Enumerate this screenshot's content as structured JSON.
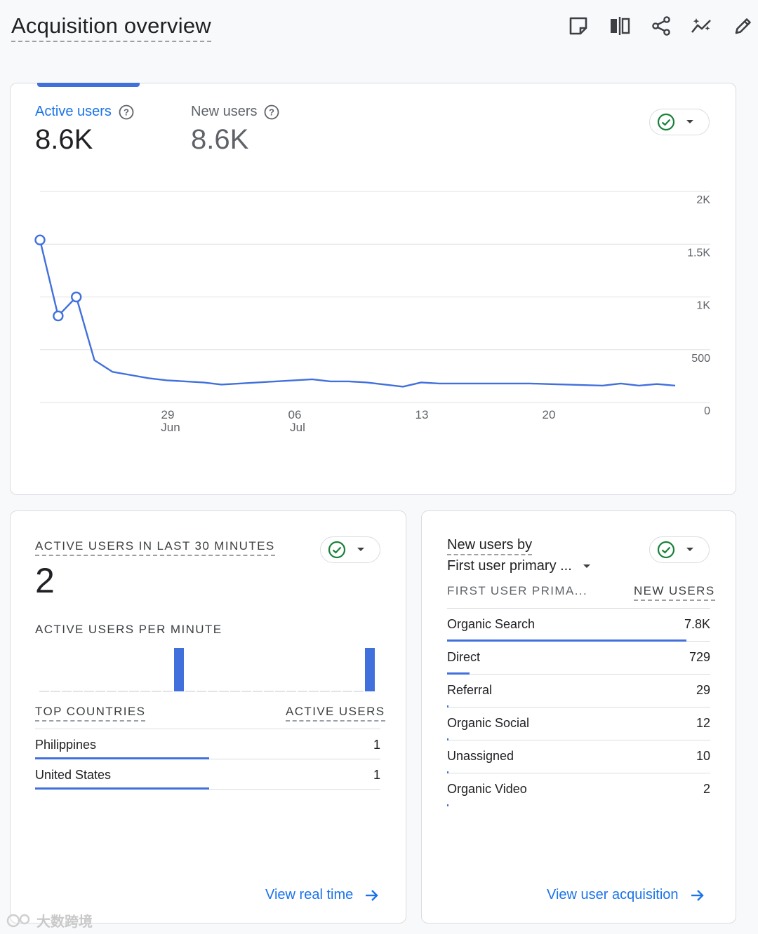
{
  "page": {
    "title": "Acquisition overview"
  },
  "toolbar": {
    "icons": [
      "notes-icon",
      "compare-icon",
      "share-icon",
      "insights-icon",
      "edit-icon"
    ]
  },
  "main_card": {
    "metrics": [
      {
        "label": "Active users",
        "value": "8.6K",
        "selected": true
      },
      {
        "label": "New users",
        "value": "8.6K",
        "selected": false
      }
    ]
  },
  "chart_data": {
    "type": "line",
    "title": "",
    "xlabel": "",
    "ylabel": "",
    "ylim": [
      0,
      2000
    ],
    "y_ticks": [
      "2K",
      "1.5K",
      "1K",
      "500",
      "0"
    ],
    "x_tick_labels": [
      {
        "day": "29",
        "month": "Jun"
      },
      {
        "day": "06",
        "month": "Jul"
      },
      {
        "day": "13",
        "month": ""
      },
      {
        "day": "20",
        "month": ""
      }
    ],
    "x": [
      "2023-06-22",
      "2023-06-23",
      "2023-06-24",
      "2023-06-25",
      "2023-06-26",
      "2023-06-27",
      "2023-06-28",
      "2023-06-29",
      "2023-06-30",
      "2023-07-01",
      "2023-07-02",
      "2023-07-03",
      "2023-07-04",
      "2023-07-05",
      "2023-07-06",
      "2023-07-07",
      "2023-07-08",
      "2023-07-09",
      "2023-07-10",
      "2023-07-11",
      "2023-07-12",
      "2023-07-13",
      "2023-07-14",
      "2023-07-15",
      "2023-07-16",
      "2023-07-17",
      "2023-07-18",
      "2023-07-19",
      "2023-07-20",
      "2023-07-21",
      "2023-07-22",
      "2023-07-23",
      "2023-07-24",
      "2023-07-25",
      "2023-07-26",
      "2023-07-27"
    ],
    "series": [
      {
        "values": [
          1540,
          820,
          1000,
          400,
          290,
          260,
          230,
          210,
          200,
          190,
          170,
          180,
          190,
          200,
          210,
          220,
          200,
          200,
          190,
          170,
          150,
          190,
          180,
          180,
          180,
          180,
          180,
          180,
          175,
          170,
          165,
          160,
          180,
          160,
          175,
          160
        ],
        "markers_visible": [
          true,
          true,
          true,
          false,
          false,
          false,
          false,
          false,
          false,
          false,
          false,
          false,
          false,
          false,
          false,
          false,
          false,
          false,
          false,
          false,
          false,
          false,
          false,
          false,
          false,
          false,
          false,
          false,
          false,
          false,
          false,
          false,
          false,
          false,
          false,
          false
        ],
        "color": "#4170dd"
      }
    ],
    "grid": true
  },
  "realtime_card": {
    "title": "ACTIVE USERS IN LAST 30 MINUTES",
    "value": "2",
    "per_minute_label": "ACTIVE USERS PER MINUTE",
    "per_minute_values": [
      0,
      0,
      0,
      0,
      0,
      0,
      0,
      0,
      0,
      0,
      0,
      0,
      1,
      0,
      0,
      0,
      0,
      0,
      0,
      0,
      0,
      0,
      0,
      0,
      0,
      0,
      0,
      0,
      0,
      1
    ],
    "countries_header": "TOP COUNTRIES",
    "users_header": "ACTIVE USERS",
    "rows": [
      {
        "name": "Philippines",
        "value": "1",
        "share": 0.5
      },
      {
        "name": "United States",
        "value": "1",
        "share": 0.5
      }
    ],
    "link": "View real time"
  },
  "channel_card": {
    "title_line1": "New users by",
    "title_line2": "First user primary ...",
    "col1_header": "FIRST USER PRIMA...",
    "col2_header": "NEW USERS",
    "rows": [
      {
        "name": "Organic Search",
        "value": "7.8K",
        "share": 0.91
      },
      {
        "name": "Direct",
        "value": "729",
        "share": 0.085
      },
      {
        "name": "Referral",
        "value": "29",
        "share": 0.0034
      },
      {
        "name": "Organic Social",
        "value": "12",
        "share": 0.0014
      },
      {
        "name": "Unassigned",
        "value": "10",
        "share": 0.0012
      },
      {
        "name": "Organic Video",
        "value": "2",
        "share": 0.0002
      }
    ],
    "link": "View user acquisition"
  },
  "watermark": "大数跨境",
  "colors": {
    "accent": "#4170dd",
    "link": "#1a73e8",
    "check": "#188038"
  }
}
